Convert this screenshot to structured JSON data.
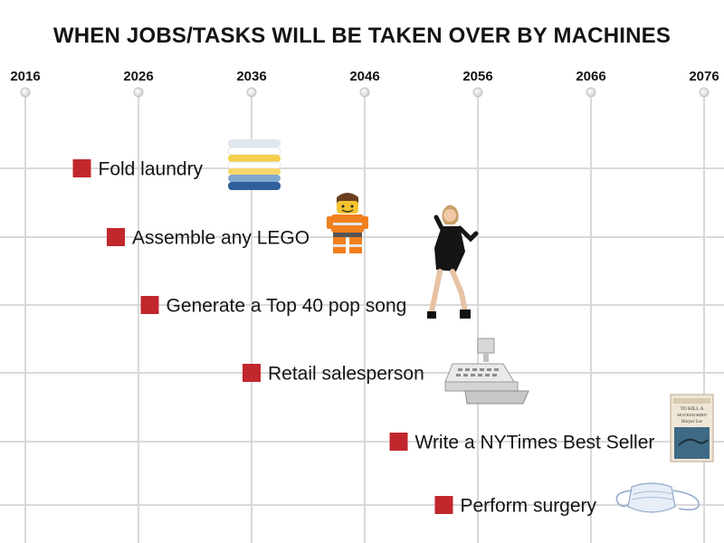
{
  "chart_data": {
    "type": "timeline",
    "title": "WHEN JOBS/TASKS WILL BE TAKEN OVER BY MACHINES",
    "x_ticks": [
      2016,
      2026,
      2036,
      2046,
      2056,
      2066,
      2076
    ],
    "xlim": [
      2016,
      2076
    ],
    "grid": true,
    "marker_color": "#c1272d",
    "grid_color": "#d9d9d9",
    "tasks": [
      {
        "label": "Fold laundry",
        "year": 2021,
        "icon": "folded-laundry-icon"
      },
      {
        "label": "Assemble any LEGO",
        "year": 2024,
        "icon": "lego-minifigure-icon"
      },
      {
        "label": "Generate a Top 40 pop song",
        "year": 2027,
        "icon": "pop-singer-icon"
      },
      {
        "label": "Retail salesperson",
        "year": 2036,
        "icon": "cash-register-icon"
      },
      {
        "label": "Write a NYTimes Best Seller",
        "year": 2049,
        "icon": "book-cover-icon"
      },
      {
        "label": "Perform surgery",
        "year": 2053,
        "icon": "surgical-mask-icon"
      }
    ]
  }
}
